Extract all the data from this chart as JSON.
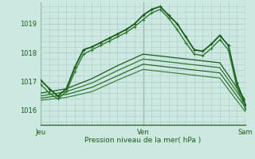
{
  "xlabel": "Pression niveau de la mer( hPa )",
  "background_color": "#cce8e0",
  "grid_color": "#aaccc8",
  "ylim": [
    1015.5,
    1019.75
  ],
  "yticks": [
    1016,
    1017,
    1018,
    1019
  ],
  "xlim": [
    0,
    24
  ],
  "x_tick_positions": [
    0,
    12,
    24
  ],
  "x_tick_labels": [
    "Jeu",
    "Ven",
    "Sam"
  ],
  "vline_color": "#336633",
  "vline_lw": 0.8,
  "series": [
    {
      "x": [
        0,
        1,
        2,
        3,
        4,
        5,
        6,
        7,
        8,
        9,
        10,
        11,
        12,
        13,
        14,
        15,
        16,
        17,
        18,
        19,
        20,
        21,
        22,
        23,
        24
      ],
      "y": [
        1017.05,
        1016.75,
        1016.5,
        1016.75,
        1017.5,
        1018.1,
        1018.2,
        1018.35,
        1018.5,
        1018.65,
        1018.8,
        1019.0,
        1019.3,
        1019.5,
        1019.6,
        1019.3,
        1019.0,
        1018.55,
        1018.1,
        1018.05,
        1018.3,
        1018.6,
        1018.25,
        1016.95,
        1016.2
      ],
      "marker": true,
      "color": "#1a5c1a",
      "lw": 1.3,
      "ms": 2.5,
      "mew": 0.8
    },
    {
      "x": [
        0,
        1,
        2,
        3,
        4,
        5,
        6,
        7,
        8,
        9,
        10,
        11,
        12,
        13,
        14,
        15,
        16,
        17,
        18,
        19,
        20,
        21,
        22,
        23,
        24
      ],
      "y": [
        1016.9,
        1016.6,
        1016.4,
        1016.65,
        1017.35,
        1017.95,
        1018.1,
        1018.25,
        1018.4,
        1018.55,
        1018.7,
        1018.9,
        1019.15,
        1019.38,
        1019.5,
        1019.2,
        1018.8,
        1018.35,
        1017.95,
        1017.9,
        1018.15,
        1018.45,
        1018.1,
        1016.8,
        1016.05
      ],
      "marker": true,
      "color": "#2d7a2d",
      "lw": 1.0,
      "ms": 2.5,
      "mew": 0.7
    },
    {
      "x": [
        0,
        3,
        6,
        9,
        12,
        15,
        18,
        21,
        24
      ],
      "y": [
        1016.6,
        1016.75,
        1017.1,
        1017.55,
        1017.95,
        1017.85,
        1017.75,
        1017.65,
        1016.35
      ],
      "marker": false,
      "color": "#1a5c1a",
      "lw": 0.9
    },
    {
      "x": [
        0,
        3,
        6,
        9,
        12,
        15,
        18,
        21,
        24
      ],
      "y": [
        1016.5,
        1016.65,
        1016.95,
        1017.38,
        1017.78,
        1017.68,
        1017.58,
        1017.48,
        1016.22
      ],
      "marker": false,
      "color": "#2d7a2d",
      "lw": 0.9
    },
    {
      "x": [
        0,
        3,
        6,
        9,
        12,
        15,
        18,
        21,
        24
      ],
      "y": [
        1016.42,
        1016.55,
        1016.8,
        1017.2,
        1017.6,
        1017.5,
        1017.4,
        1017.3,
        1016.1
      ],
      "marker": false,
      "color": "#1a5c1a",
      "lw": 0.8
    },
    {
      "x": [
        0,
        3,
        6,
        9,
        12,
        15,
        18,
        21,
        24
      ],
      "y": [
        1016.35,
        1016.45,
        1016.65,
        1017.05,
        1017.42,
        1017.32,
        1017.22,
        1017.12,
        1015.95
      ],
      "marker": false,
      "color": "#2d7a2d",
      "lw": 0.8
    }
  ]
}
